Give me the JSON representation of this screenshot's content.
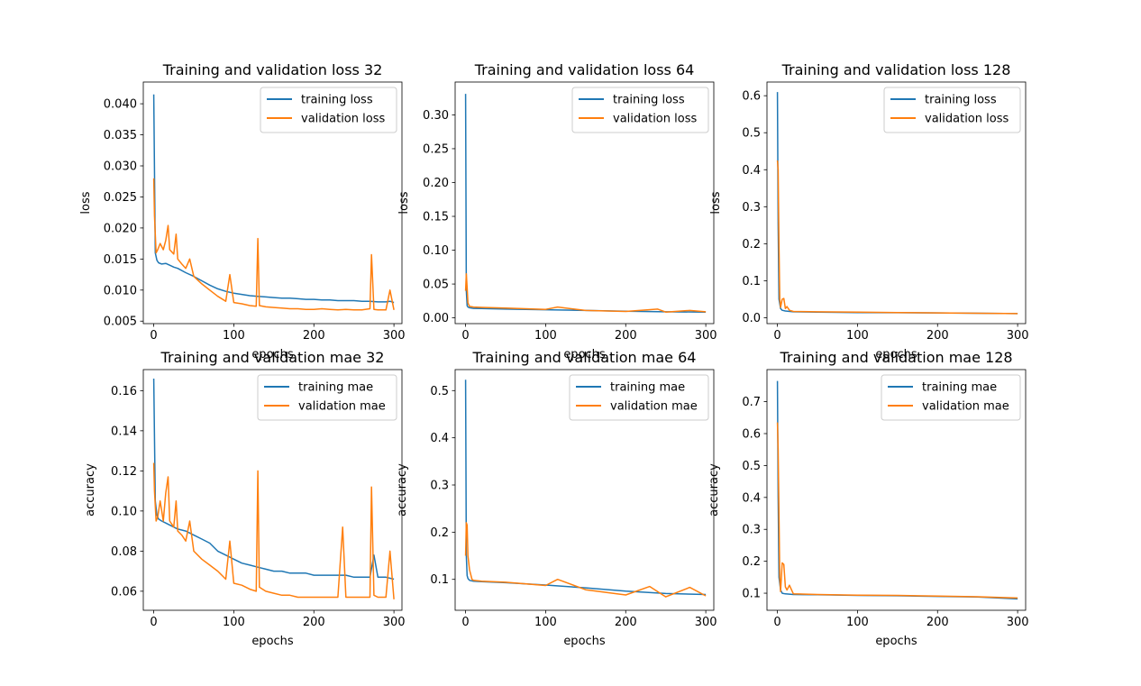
{
  "colors": {
    "training": "#1f77b4",
    "validation": "#ff7f0e"
  },
  "chart_data": [
    {
      "type": "line",
      "title": "Training and validation loss 32",
      "xlabel": "epochs",
      "ylabel": "loss",
      "xlim": [
        -13,
        310
      ],
      "ylim": [
        0.0046,
        0.0435
      ],
      "xticks": [
        0,
        100,
        200,
        300
      ],
      "yticks": [
        0.005,
        0.01,
        0.015,
        0.02,
        0.025,
        0.03,
        0.035,
        0.04
      ],
      "yticklabels": [
        "0.005",
        "0.010",
        "0.015",
        "0.020",
        "0.025",
        "0.030",
        "0.035",
        "0.040"
      ],
      "legend": "top-right",
      "series": [
        {
          "name": "training loss",
          "color": "#1f77b4",
          "x": [
            0,
            2,
            4,
            6,
            10,
            15,
            20,
            25,
            30,
            40,
            50,
            60,
            70,
            80,
            90,
            100,
            110,
            120,
            130,
            140,
            150,
            160,
            170,
            180,
            190,
            200,
            210,
            220,
            230,
            240,
            250,
            260,
            270,
            280,
            290,
            295,
            300
          ],
          "y": [
            0.0415,
            0.016,
            0.0148,
            0.0144,
            0.0142,
            0.0143,
            0.014,
            0.0137,
            0.0135,
            0.0128,
            0.0122,
            0.0115,
            0.0108,
            0.0102,
            0.0098,
            0.0095,
            0.0093,
            0.0091,
            0.009,
            0.0089,
            0.0088,
            0.0087,
            0.0087,
            0.0086,
            0.0085,
            0.0085,
            0.0084,
            0.0084,
            0.0083,
            0.0083,
            0.0083,
            0.0082,
            0.0082,
            0.0081,
            0.0081,
            0.0082,
            0.008
          ]
        },
        {
          "name": "validation loss",
          "color": "#ff7f0e",
          "x": [
            0,
            1,
            3,
            5,
            8,
            12,
            15,
            18,
            20,
            25,
            28,
            30,
            35,
            40,
            45,
            50,
            60,
            70,
            80,
            90,
            95,
            100,
            110,
            120,
            128,
            130,
            132,
            140,
            150,
            160,
            170,
            180,
            190,
            200,
            210,
            220,
            230,
            240,
            250,
            260,
            270,
            272,
            275,
            280,
            290,
            295,
            300
          ],
          "y": [
            0.028,
            0.022,
            0.016,
            0.0165,
            0.0175,
            0.0165,
            0.018,
            0.0204,
            0.0165,
            0.0158,
            0.019,
            0.015,
            0.0142,
            0.0135,
            0.015,
            0.0122,
            0.011,
            0.01,
            0.009,
            0.0082,
            0.0125,
            0.008,
            0.0078,
            0.0075,
            0.0074,
            0.0183,
            0.0075,
            0.0073,
            0.0072,
            0.0071,
            0.007,
            0.007,
            0.0069,
            0.0069,
            0.007,
            0.0069,
            0.0068,
            0.0069,
            0.0068,
            0.0068,
            0.007,
            0.0157,
            0.0069,
            0.0068,
            0.0068,
            0.01,
            0.0068
          ]
        }
      ]
    },
    {
      "type": "line",
      "title": "Training and validation loss 64",
      "xlabel": "epochs",
      "ylabel": "loss",
      "xlim": [
        -13,
        310
      ],
      "ylim": [
        -0.0085,
        0.3485
      ],
      "xticks": [
        0,
        100,
        200,
        300
      ],
      "yticks": [
        0.0,
        0.05,
        0.1,
        0.15,
        0.2,
        0.25,
        0.3
      ],
      "yticklabels": [
        "0.00",
        "0.05",
        "0.10",
        "0.15",
        "0.20",
        "0.25",
        "0.30"
      ],
      "legend": "top-right",
      "series": [
        {
          "name": "training loss",
          "color": "#1f77b4",
          "x": [
            0,
            1,
            2,
            3,
            5,
            10,
            20,
            50,
            100,
            150,
            200,
            250,
            300
          ],
          "y": [
            0.331,
            0.04,
            0.018,
            0.016,
            0.015,
            0.014,
            0.0138,
            0.013,
            0.012,
            0.011,
            0.0098,
            0.009,
            0.0085
          ]
        },
        {
          "name": "validation loss",
          "color": "#ff7f0e",
          "x": [
            0,
            1,
            2,
            3,
            5,
            10,
            20,
            50,
            100,
            115,
            150,
            200,
            240,
            250,
            280,
            300
          ],
          "y": [
            0.04,
            0.065,
            0.045,
            0.022,
            0.017,
            0.016,
            0.0155,
            0.0145,
            0.0125,
            0.016,
            0.011,
            0.0095,
            0.013,
            0.0085,
            0.011,
            0.009
          ]
        }
      ]
    },
    {
      "type": "line",
      "title": "Training and validation loss 128",
      "xlabel": "epochs",
      "ylabel": "loss",
      "xlim": [
        -13,
        310
      ],
      "ylim": [
        -0.016,
        0.637
      ],
      "xticks": [
        0,
        100,
        200,
        300
      ],
      "yticks": [
        0.0,
        0.1,
        0.2,
        0.3,
        0.4,
        0.5,
        0.6
      ],
      "yticklabels": [
        "0.0",
        "0.1",
        "0.2",
        "0.3",
        "0.4",
        "0.5",
        "0.6"
      ],
      "legend": "top-right",
      "series": [
        {
          "name": "training loss",
          "color": "#1f77b4",
          "x": [
            0,
            1,
            2,
            4,
            6,
            10,
            20,
            50,
            100,
            150,
            200,
            250,
            300
          ],
          "y": [
            0.61,
            0.25,
            0.05,
            0.025,
            0.02,
            0.018,
            0.016,
            0.015,
            0.014,
            0.0135,
            0.013,
            0.012,
            0.011
          ]
        },
        {
          "name": "validation loss",
          "color": "#ff7f0e",
          "x": [
            0,
            1,
            2,
            3,
            4,
            6,
            8,
            10,
            12,
            15,
            20,
            50,
            100,
            150,
            200,
            250,
            300
          ],
          "y": [
            0.425,
            0.4,
            0.2,
            0.05,
            0.028,
            0.05,
            0.052,
            0.025,
            0.03,
            0.02,
            0.017,
            0.016,
            0.015,
            0.014,
            0.013,
            0.012,
            0.011
          ]
        }
      ]
    },
    {
      "type": "line",
      "title": "Training and validation mae 32",
      "xlabel": "epochs",
      "ylabel": "accuracy",
      "xlim": [
        -13,
        310
      ],
      "ylim": [
        0.0505,
        0.1705
      ],
      "xticks": [
        0,
        100,
        200,
        300
      ],
      "yticks": [
        0.06,
        0.08,
        0.1,
        0.12,
        0.14,
        0.16
      ],
      "yticklabels": [
        "0.06",
        "0.08",
        "0.10",
        "0.12",
        "0.14",
        "0.16"
      ],
      "legend": "top-right",
      "series": [
        {
          "name": "training mae",
          "color": "#1f77b4",
          "x": [
            0,
            2,
            4,
            6,
            10,
            15,
            20,
            30,
            40,
            50,
            60,
            70,
            80,
            90,
            100,
            110,
            120,
            130,
            140,
            150,
            160,
            170,
            180,
            190,
            200,
            210,
            220,
            230,
            240,
            250,
            260,
            270,
            275,
            280,
            290,
            300
          ],
          "y": [
            0.166,
            0.105,
            0.098,
            0.096,
            0.095,
            0.094,
            0.093,
            0.091,
            0.09,
            0.088,
            0.086,
            0.084,
            0.08,
            0.078,
            0.076,
            0.074,
            0.073,
            0.072,
            0.071,
            0.07,
            0.07,
            0.069,
            0.069,
            0.069,
            0.068,
            0.068,
            0.068,
            0.068,
            0.068,
            0.067,
            0.067,
            0.067,
            0.078,
            0.067,
            0.067,
            0.066
          ]
        },
        {
          "name": "validation mae",
          "color": "#ff7f0e",
          "x": [
            0,
            1,
            3,
            5,
            8,
            12,
            15,
            18,
            20,
            25,
            28,
            30,
            35,
            40,
            45,
            50,
            60,
            70,
            80,
            90,
            95,
            100,
            110,
            120,
            128,
            130,
            132,
            140,
            150,
            160,
            170,
            180,
            190,
            200,
            210,
            220,
            230,
            236,
            240,
            250,
            260,
            270,
            272,
            275,
            280,
            290,
            295,
            300
          ],
          "y": [
            0.124,
            0.11,
            0.095,
            0.097,
            0.105,
            0.095,
            0.109,
            0.117,
            0.095,
            0.092,
            0.105,
            0.09,
            0.088,
            0.085,
            0.095,
            0.08,
            0.076,
            0.073,
            0.07,
            0.066,
            0.085,
            0.064,
            0.063,
            0.061,
            0.06,
            0.12,
            0.062,
            0.06,
            0.059,
            0.058,
            0.058,
            0.057,
            0.057,
            0.057,
            0.057,
            0.057,
            0.057,
            0.092,
            0.057,
            0.057,
            0.057,
            0.057,
            0.112,
            0.058,
            0.057,
            0.057,
            0.08,
            0.056
          ]
        }
      ]
    },
    {
      "type": "line",
      "title": "Training and validation mae 64",
      "xlabel": "epochs",
      "ylabel": "accuracy",
      "xlim": [
        -13,
        310
      ],
      "ylim": [
        0.0345,
        0.5445
      ],
      "xticks": [
        0,
        100,
        200,
        300
      ],
      "yticks": [
        0.1,
        0.2,
        0.3,
        0.4,
        0.5
      ],
      "yticklabels": [
        "0.1",
        "0.2",
        "0.3",
        "0.4",
        "0.5"
      ],
      "legend": "top-right",
      "series": [
        {
          "name": "training mae",
          "color": "#1f77b4",
          "x": [
            0,
            1,
            2,
            3,
            5,
            10,
            20,
            50,
            100,
            150,
            200,
            250,
            300
          ],
          "y": [
            0.523,
            0.15,
            0.108,
            0.102,
            0.098,
            0.096,
            0.095,
            0.093,
            0.088,
            0.082,
            0.075,
            0.07,
            0.068
          ]
        },
        {
          "name": "validation mae",
          "color": "#ff7f0e",
          "x": [
            0,
            1,
            2,
            3,
            5,
            8,
            10,
            20,
            50,
            100,
            115,
            150,
            200,
            230,
            250,
            280,
            300
          ],
          "y": [
            0.15,
            0.22,
            0.215,
            0.15,
            0.12,
            0.1,
            0.098,
            0.096,
            0.094,
            0.087,
            0.1,
            0.078,
            0.067,
            0.085,
            0.063,
            0.083,
            0.065
          ]
        }
      ]
    },
    {
      "type": "line",
      "title": "Training and validation mae 128",
      "xlabel": "epochs",
      "ylabel": "accuracy",
      "xlim": [
        -13,
        310
      ],
      "ylim": [
        0.0465,
        0.8005
      ],
      "xticks": [
        0,
        100,
        200,
        300
      ],
      "yticks": [
        0.1,
        0.2,
        0.3,
        0.4,
        0.5,
        0.6,
        0.7
      ],
      "yticklabels": [
        "0.1",
        "0.2",
        "0.3",
        "0.4",
        "0.5",
        "0.6",
        "0.7"
      ],
      "legend": "top-right",
      "series": [
        {
          "name": "training mae",
          "color": "#1f77b4",
          "x": [
            0,
            1,
            2,
            4,
            6,
            10,
            20,
            50,
            100,
            150,
            200,
            250,
            300
          ],
          "y": [
            0.765,
            0.4,
            0.15,
            0.11,
            0.1,
            0.098,
            0.096,
            0.095,
            0.093,
            0.092,
            0.09,
            0.088,
            0.082
          ]
        },
        {
          "name": "validation mae",
          "color": "#ff7f0e",
          "x": [
            0,
            1,
            2,
            3,
            4,
            6,
            8,
            10,
            12,
            15,
            20,
            50,
            100,
            150,
            200,
            250,
            300
          ],
          "y": [
            0.635,
            0.55,
            0.35,
            0.15,
            0.105,
            0.195,
            0.19,
            0.12,
            0.11,
            0.125,
            0.098,
            0.096,
            0.094,
            0.093,
            0.091,
            0.089,
            0.085
          ]
        }
      ]
    }
  ]
}
